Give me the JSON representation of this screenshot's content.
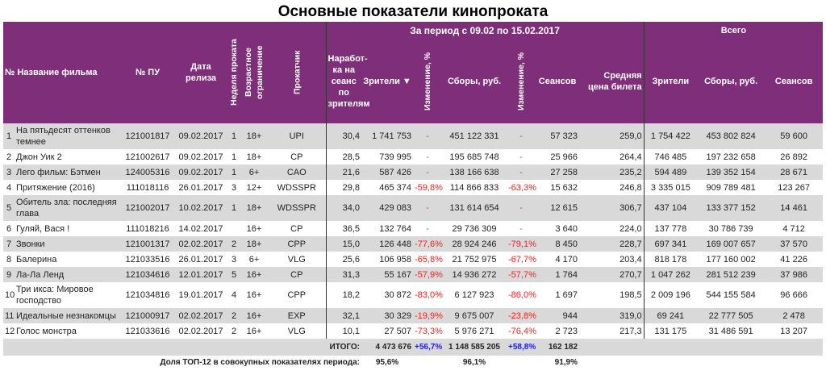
{
  "title": "Основные показатели кинопроката",
  "header": {
    "num_name": "№ Название фильма",
    "pu": "№ ПУ",
    "release": "Дата релиза",
    "week": "Неделя проката",
    "age": "Возрастное ограничение",
    "distributor": "Прокатчик",
    "period": "За период с 09.02 по 15.02.2017",
    "total_group": "Всего",
    "per_session": "Наработ-ка на сеанс по зрителям",
    "viewers": "Зрители ▼",
    "change1": "Изменение, %",
    "gross": "Сборы, руб.",
    "change2": "Изменение, %",
    "sessions": "Сеансов",
    "avg_price": "Средняя цена билета",
    "total_viewers": "Зрители",
    "total_gross": "Сборы, руб.",
    "total_sessions": "Сеансов"
  },
  "colors": {
    "header_bg": "#7f2f7a",
    "negative": "#ff2020",
    "positive": "#1a1aff",
    "stripe": "#d9d9d9"
  },
  "rows": [
    {
      "n": "1",
      "name": "На пятьдесят оттенков темнее",
      "pu": "121001817",
      "date": "09.02.2017",
      "week": "1",
      "age": "18+",
      "dist": "UPI",
      "per": "30,4",
      "viewers": "1 741 753",
      "ch1": "-",
      "gross": "451 122 331",
      "ch2": "-",
      "sess": "57 323",
      "price": "259,0",
      "tv": "1 754 422",
      "tg": "453 802 824",
      "ts": "59 600"
    },
    {
      "n": "2",
      "name": "Джон Уик 2",
      "pu": "121002617",
      "date": "09.02.2017",
      "week": "1",
      "age": "18+",
      "dist": "CP",
      "per": "28,5",
      "viewers": "739 995",
      "ch1": "-",
      "gross": "195 685 748",
      "ch2": "-",
      "sess": "25 966",
      "price": "264,4",
      "tv": "746 485",
      "tg": "197 232 658",
      "ts": "26 892"
    },
    {
      "n": "3",
      "name": "Лего фильм: Бэтмен",
      "pu": "124005316",
      "date": "09.02.2017",
      "week": "1",
      "age": "6+",
      "dist": "CAO",
      "per": "21,6",
      "viewers": "587 426",
      "ch1": "-",
      "gross": "138 166 638",
      "ch2": "-",
      "sess": "27 258",
      "price": "235,2",
      "tv": "594 489",
      "tg": "139 352 154",
      "ts": "28 671"
    },
    {
      "n": "4",
      "name": "Притяжение (2016)",
      "pu": "111018116",
      "date": "26.01.2017",
      "week": "3",
      "age": "12+",
      "dist": "WDSSPR",
      "per": "29,8",
      "viewers": "465 374",
      "ch1": "-59,8%",
      "gross": "114 866 833",
      "ch2": "-63,3%",
      "sess": "15 632",
      "price": "246,8",
      "tv": "3 335 015",
      "tg": "909 789 481",
      "ts": "123 267"
    },
    {
      "n": "5",
      "name": "Обитель зла: последняя глава",
      "pu": "121002017",
      "date": "10.02.2017",
      "week": "1",
      "age": "18+",
      "dist": "WDSSPR",
      "per": "34,0",
      "viewers": "429 083",
      "ch1": "-",
      "gross": "131 614 654",
      "ch2": "-",
      "sess": "12 615",
      "price": "306,7",
      "tv": "437 104",
      "tg": "133 377 152",
      "ts": "14 461"
    },
    {
      "n": "6",
      "name": "Гуляй, Вася !",
      "pu": "111018216",
      "date": "14.02.2017",
      "week": "",
      "age": "16+",
      "dist": "CP",
      "per": "36,5",
      "viewers": "132 764",
      "ch1": "-",
      "gross": "29 736 309",
      "ch2": "-",
      "sess": "3 640",
      "price": "224,0",
      "tv": "137 778",
      "tg": "30 786 739",
      "ts": "4 712"
    },
    {
      "n": "7",
      "name": "Звонки",
      "pu": "121001317",
      "date": "02.02.2017",
      "week": "2",
      "age": "18+",
      "dist": "CPP",
      "per": "15,0",
      "viewers": "126 448",
      "ch1": "-77,6%",
      "gross": "28 924 246",
      "ch2": "-79,1%",
      "sess": "8 450",
      "price": "228,7",
      "tv": "697 341",
      "tg": "169 007 657",
      "ts": "37 570"
    },
    {
      "n": "8",
      "name": "Балерина",
      "pu": "121033516",
      "date": "26.01.2017",
      "week": "3",
      "age": "6+",
      "dist": "VLG",
      "per": "25,6",
      "viewers": "106 958",
      "ch1": "-65,8%",
      "gross": "21 752 975",
      "ch2": "-67,7%",
      "sess": "4 170",
      "price": "203,4",
      "tv": "818 178",
      "tg": "177 160 002",
      "ts": "41 226"
    },
    {
      "n": "9",
      "name": "Ла-Ла Ленд",
      "pu": "121034616",
      "date": "12.01.2017",
      "week": "5",
      "age": "16+",
      "dist": "CP",
      "per": "31,3",
      "viewers": "55 167",
      "ch1": "-57,9%",
      "gross": "14 936 272",
      "ch2": "-57,7%",
      "sess": "1 764",
      "price": "270,7",
      "tv": "1 047 262",
      "tg": "281 512 239",
      "ts": "37 986"
    },
    {
      "n": "10",
      "name": "Три икса: Мировое господство",
      "pu": "121034816",
      "date": "19.01.2017",
      "week": "4",
      "age": "16+",
      "dist": "CPP",
      "per": "18,2",
      "viewers": "30 872",
      "ch1": "-83,0%",
      "gross": "6 127 923",
      "ch2": "-86,0%",
      "sess": "1 697",
      "price": "198,5",
      "tv": "2 009 196",
      "tg": "544 155 584",
      "ts": "96 666"
    },
    {
      "n": "11",
      "name": "Идеальные незнакомцы",
      "pu": "121000917",
      "date": "02.02.2017",
      "week": "2",
      "age": "16+",
      "dist": "EXP",
      "per": "32,1",
      "viewers": "30 329",
      "ch1": "-19,9%",
      "gross": "9 675 007",
      "ch2": "-23,8%",
      "sess": "944",
      "price": "319,0",
      "tv": "69 241",
      "tg": "22 777 505",
      "ts": "2 478"
    },
    {
      "n": "12",
      "name": "Голос монстра",
      "pu": "121033616",
      "date": "02.02.2017",
      "week": "2",
      "age": "16+",
      "dist": "VLG",
      "per": "10,1",
      "viewers": "27 507",
      "ch1": "-73,3%",
      "gross": "5 976 271",
      "ch2": "-76,4%",
      "sess": "2 723",
      "price": "217,3",
      "tv": "131 175",
      "tg": "31 486 591",
      "ts": "13 207"
    }
  ],
  "total": {
    "label": "ИТОГО:",
    "viewers": "4 473 676",
    "ch1": "+56,7%",
    "gross": "1 148 585 205",
    "ch2": "+58,8%",
    "sess": "162 182"
  },
  "share": {
    "label": "Доля ТОП-12 в совокупных показателях периода:",
    "viewers": "95,6%",
    "gross": "96,1%",
    "sess": "91,9%"
  }
}
